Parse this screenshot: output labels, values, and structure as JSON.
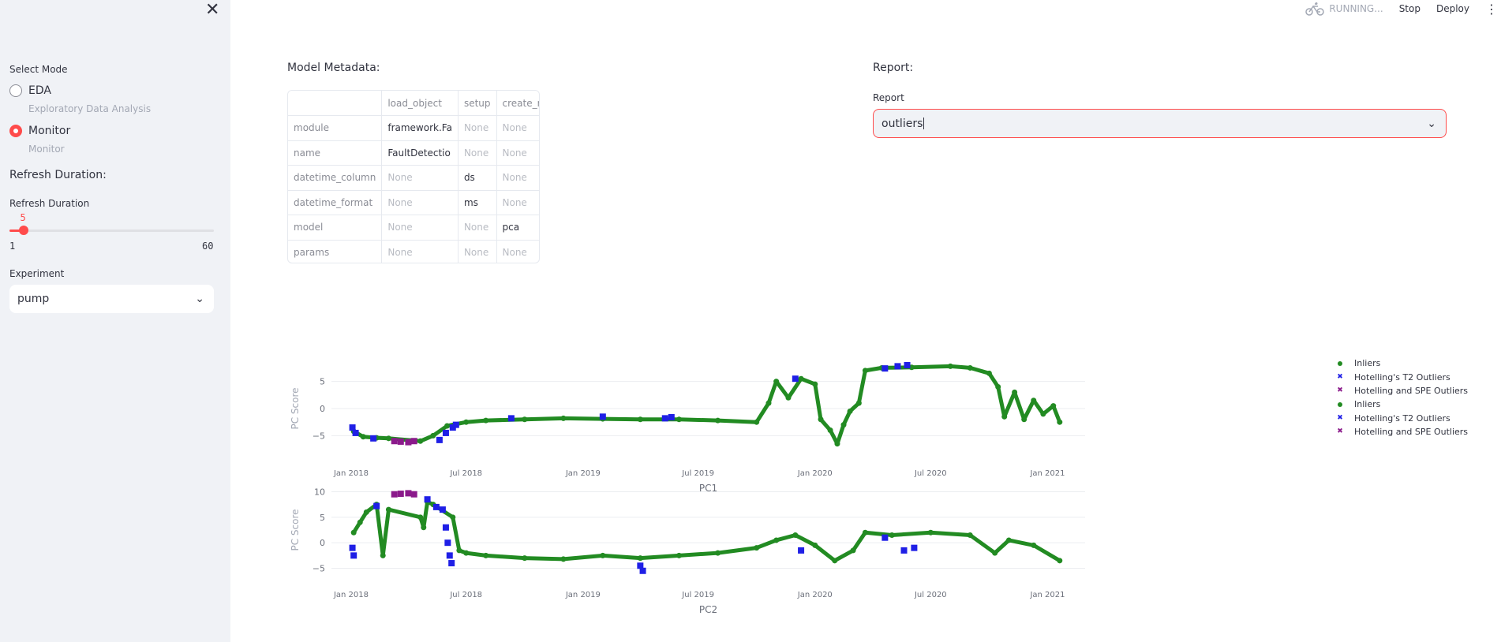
{
  "sidebar": {
    "select_mode_label": "Select Mode",
    "modes": [
      {
        "label": "EDA",
        "caption": "Exploratory Data Analysis",
        "selected": false
      },
      {
        "label": "Monitor",
        "caption": "Monitor",
        "selected": true
      }
    ],
    "refresh_heading": "Refresh Duration:",
    "refresh_slider": {
      "label": "Refresh Duration",
      "value": 5,
      "min": 1,
      "max": 60,
      "value_text": "5",
      "min_text": "1",
      "max_text": "60"
    },
    "experiment_label": "Experiment",
    "experiment_value": "pump"
  },
  "topbar": {
    "status": "RUNNING...",
    "stop_label": "Stop",
    "deploy_label": "Deploy"
  },
  "metadata": {
    "title": "Model Metadata:",
    "columns": [
      "",
      "load_object",
      "setup",
      "create_model"
    ],
    "rows": [
      [
        "module",
        "framework.Fa",
        "None",
        "None"
      ],
      [
        "name",
        "FaultDetectio",
        "None",
        "None"
      ],
      [
        "datetime_column",
        "None",
        "ds",
        "None"
      ],
      [
        "datetime_format",
        "None",
        "ms",
        "None"
      ],
      [
        "model",
        "None",
        "None",
        "pca"
      ],
      [
        "params",
        "None",
        "None",
        "None"
      ]
    ]
  },
  "report": {
    "title": "Report:",
    "label": "Report",
    "value": "outliers"
  },
  "colors": {
    "inlier": "#228b22",
    "t2": "#1f1fe6",
    "spe": "#8b1a8b",
    "accent": "#ff4b4b"
  },
  "chart_data": [
    {
      "type": "scatter",
      "xlabel": "PC1",
      "ylabel": "PC Score",
      "xticks": [
        "Jan 2018",
        "Jul 2018",
        "Jan 2019",
        "Jul 2019",
        "Jan 2020",
        "Jul 2020",
        "Jan 2021"
      ],
      "yticks": [
        "5",
        "0",
        "−5"
      ],
      "ytick_values": [
        5,
        0,
        -5
      ],
      "xlim": [
        "2017-12-01",
        "2021-03-01"
      ],
      "ylim": [
        -8,
        8
      ],
      "series": [
        {
          "name": "Inliers",
          "color": "#228b22",
          "points": [
            [
              "2018-01-05",
              -4.2
            ],
            [
              "2018-01-20",
              -5.2
            ],
            [
              "2018-02-10",
              -5.4
            ],
            [
              "2018-03-01",
              -5.5
            ],
            [
              "2018-04-20",
              -6.0
            ],
            [
              "2018-05-10",
              -5.0
            ],
            [
              "2018-06-01",
              -3.2
            ],
            [
              "2018-07-01",
              -2.5
            ],
            [
              "2018-08-01",
              -2.2
            ],
            [
              "2018-10-01",
              -2.0
            ],
            [
              "2018-12-01",
              -1.8
            ],
            [
              "2019-02-01",
              -1.9
            ],
            [
              "2019-04-01",
              -2.0
            ],
            [
              "2019-06-01",
              -2.0
            ],
            [
              "2019-08-01",
              -2.2
            ],
            [
              "2019-10-01",
              -2.5
            ],
            [
              "2019-10-20",
              1.0
            ],
            [
              "2019-11-01",
              5.0
            ],
            [
              "2019-11-20",
              2.0
            ],
            [
              "2019-12-10",
              5.5
            ],
            [
              "2020-01-01",
              4.5
            ],
            [
              "2020-01-10",
              -2.0
            ],
            [
              "2020-01-25",
              -4.0
            ],
            [
              "2020-02-05",
              -6.5
            ],
            [
              "2020-02-15",
              -3.0
            ],
            [
              "2020-02-25",
              -0.5
            ],
            [
              "2020-03-10",
              1.0
            ],
            [
              "2020-03-20",
              7.0
            ],
            [
              "2020-04-15",
              7.5
            ],
            [
              "2020-06-01",
              7.6
            ],
            [
              "2020-08-01",
              7.8
            ],
            [
              "2020-09-01",
              7.5
            ],
            [
              "2020-10-01",
              6.5
            ],
            [
              "2020-10-15",
              4.0
            ],
            [
              "2020-10-25",
              -1.5
            ],
            [
              "2020-11-10",
              3.0
            ],
            [
              "2020-11-25",
              -2.0
            ],
            [
              "2020-12-10",
              1.5
            ],
            [
              "2020-12-25",
              -1.0
            ],
            [
              "2021-01-10",
              0.5
            ],
            [
              "2021-01-20",
              -2.5
            ]
          ]
        },
        {
          "name": "Hotelling's T2 Outliers",
          "color": "#1f1fe6",
          "points": [
            [
              "2018-01-03",
              -3.5
            ],
            [
              "2018-01-08",
              -4.5
            ],
            [
              "2018-02-05",
              -5.5
            ],
            [
              "2018-05-20",
              -5.8
            ],
            [
              "2018-05-30",
              -4.5
            ],
            [
              "2018-06-10",
              -3.5
            ],
            [
              "2018-06-15",
              -3.0
            ],
            [
              "2018-09-10",
              -1.8
            ],
            [
              "2019-02-01",
              -1.5
            ],
            [
              "2019-05-10",
              -1.8
            ],
            [
              "2019-05-20",
              -1.6
            ],
            [
              "2019-12-01",
              5.5
            ],
            [
              "2020-04-20",
              7.4
            ],
            [
              "2020-05-10",
              7.8
            ],
            [
              "2020-05-25",
              8.0
            ]
          ]
        },
        {
          "name": "Hotelling and SPE Outliers",
          "color": "#8b1a8b",
          "points": [
            [
              "2018-03-10",
              -6.0
            ],
            [
              "2018-03-20",
              -6.1
            ],
            [
              "2018-04-01",
              -6.2
            ],
            [
              "2018-04-10",
              -6.0
            ]
          ]
        }
      ]
    },
    {
      "type": "scatter",
      "xlabel": "PC2",
      "ylabel": "PC Score",
      "xticks": [
        "Jan 2018",
        "Jul 2018",
        "Jan 2019",
        "Jul 2019",
        "Jan 2020",
        "Jul 2020",
        "Jan 2021"
      ],
      "yticks": [
        "10",
        "5",
        "0",
        "−5"
      ],
      "ytick_values": [
        10,
        5,
        0,
        -5
      ],
      "xlim": [
        "2017-12-01",
        "2021-03-01"
      ],
      "ylim": [
        -6,
        11
      ],
      "series": [
        {
          "name": "Inliers",
          "color": "#228b22",
          "points": [
            [
              "2018-01-05",
              2.0
            ],
            [
              "2018-01-15",
              4.0
            ],
            [
              "2018-01-25",
              6.0
            ],
            [
              "2018-02-10",
              7.5
            ],
            [
              "2018-02-20",
              -2.5
            ],
            [
              "2018-03-01",
              6.5
            ],
            [
              "2018-04-20",
              5.0
            ],
            [
              "2018-04-25",
              3.0
            ],
            [
              "2018-05-01",
              8.0
            ],
            [
              "2018-05-10",
              7.5
            ],
            [
              "2018-06-10",
              5.0
            ],
            [
              "2018-06-20",
              -1.5
            ],
            [
              "2018-07-01",
              -2.0
            ],
            [
              "2018-08-01",
              -2.5
            ],
            [
              "2018-10-01",
              -3.0
            ],
            [
              "2018-12-01",
              -3.2
            ],
            [
              "2019-02-01",
              -2.5
            ],
            [
              "2019-04-01",
              -3.0
            ],
            [
              "2019-06-01",
              -2.5
            ],
            [
              "2019-08-01",
              -2.0
            ],
            [
              "2019-10-01",
              -1.0
            ],
            [
              "2019-11-01",
              0.5
            ],
            [
              "2019-12-01",
              1.5
            ],
            [
              "2020-01-01",
              -0.5
            ],
            [
              "2020-02-01",
              -3.5
            ],
            [
              "2020-03-01",
              -1.5
            ],
            [
              "2020-03-20",
              2.0
            ],
            [
              "2020-05-01",
              1.5
            ],
            [
              "2020-07-01",
              2.0
            ],
            [
              "2020-09-01",
              1.5
            ],
            [
              "2020-10-10",
              -2.0
            ],
            [
              "2020-11-01",
              0.5
            ],
            [
              "2020-12-10",
              -0.5
            ],
            [
              "2021-01-20",
              -3.5
            ]
          ]
        },
        {
          "name": "Hotelling's T2 Outliers",
          "color": "#1f1fe6",
          "points": [
            [
              "2018-01-03",
              -1.0
            ],
            [
              "2018-01-05",
              -2.5
            ],
            [
              "2018-02-10",
              7.2
            ],
            [
              "2018-05-01",
              8.5
            ],
            [
              "2018-05-15",
              7.0
            ],
            [
              "2018-05-25",
              6.5
            ],
            [
              "2018-05-30",
              3.0
            ],
            [
              "2018-06-02",
              0.0
            ],
            [
              "2018-06-05",
              -2.5
            ],
            [
              "2018-06-08",
              -4.0
            ],
            [
              "2019-04-01",
              -4.5
            ],
            [
              "2019-04-05",
              -5.5
            ],
            [
              "2019-12-10",
              -1.5
            ],
            [
              "2020-04-20",
              1.0
            ],
            [
              "2020-05-20",
              -1.5
            ],
            [
              "2020-06-05",
              -1.0
            ]
          ]
        },
        {
          "name": "Hotelling and SPE Outliers",
          "color": "#8b1a8b",
          "points": [
            [
              "2018-03-10",
              9.5
            ],
            [
              "2018-03-20",
              9.6
            ],
            [
              "2018-04-01",
              9.7
            ],
            [
              "2018-04-10",
              9.5
            ]
          ]
        }
      ]
    }
  ],
  "legend": [
    {
      "label": "Inliers",
      "color": "#228b22",
      "symbol": "dot"
    },
    {
      "label": "Hotelling's T2 Outliers",
      "color": "#1f1fe6",
      "symbol": "x"
    },
    {
      "label": "Hotelling and SPE Outliers",
      "color": "#8b1a8b",
      "symbol": "x"
    },
    {
      "label": "Inliers",
      "color": "#228b22",
      "symbol": "dot"
    },
    {
      "label": "Hotelling's T2 Outliers",
      "color": "#1f1fe6",
      "symbol": "x"
    },
    {
      "label": "Hotelling and SPE Outliers",
      "color": "#8b1a8b",
      "symbol": "x"
    }
  ]
}
